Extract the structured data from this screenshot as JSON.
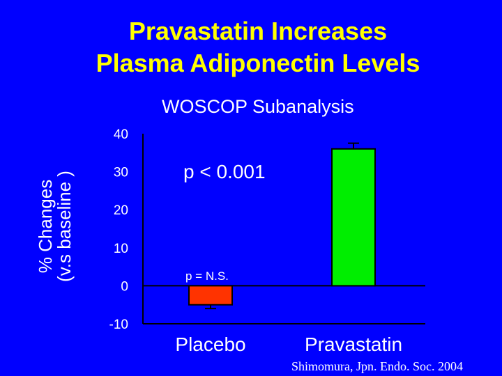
{
  "title_line1": "Pravastatin Increases",
  "title_line2": "Plasma Adiponectin Levels",
  "subtitle": "WOSCOP Subanalysis",
  "credit": "Shimomura, Jpn. Endo. Soc. 2004",
  "colors": {
    "background": "#0000FF",
    "title": "#FFFF00",
    "placebo_bar": "#FF3300",
    "pravastatin_bar": "#00EE00",
    "axis": "#000000"
  },
  "chart_data": {
    "type": "bar",
    "title": "Pravastatin Increases Plasma Adiponectin Levels",
    "subtitle": "WOSCOP Subanalysis",
    "ylabel_line1": "% Changes",
    "ylabel_line2": "(v.s baseline )",
    "ylim": [
      -10,
      40
    ],
    "yticks": [
      40,
      30,
      20,
      10,
      0,
      -10
    ],
    "categories": [
      "Placebo",
      "Pravastatin"
    ],
    "values": [
      -5,
      36
    ],
    "error_bars": [
      1,
      1.5
    ],
    "annotations": [
      {
        "text": "p < 0.001",
        "target": "Pravastatin"
      },
      {
        "text": "p = N.S.",
        "target": "Placebo"
      }
    ],
    "grid": false
  }
}
